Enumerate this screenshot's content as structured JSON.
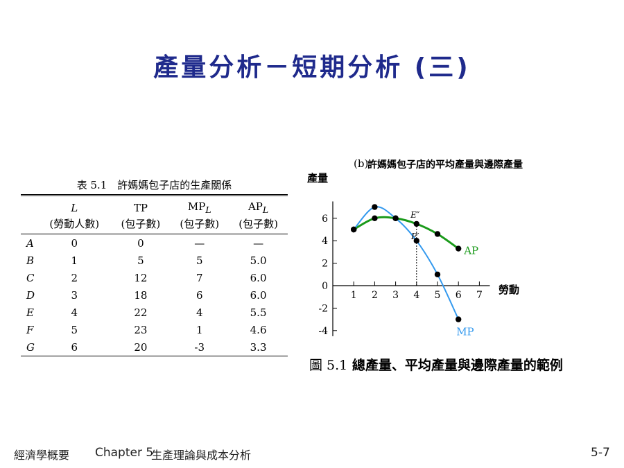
{
  "slide": {
    "title": "產量分析－短期分析 (三)",
    "footer_left": "經濟學概要",
    "footer_chapter": "Chapter 5",
    "footer_topic": "生產理論與成本分析",
    "page_number": "5-7"
  },
  "table": {
    "caption": "表 5.1　許媽媽包子店的生產關係",
    "headers": [
      {
        "main": "L",
        "sub": "(勞動人數)"
      },
      {
        "main": "TP",
        "sub": "(包子數)"
      },
      {
        "main": "MP",
        "main_sub": "L",
        "sub": "(包子數)"
      },
      {
        "main": "AP",
        "main_sub": "L",
        "sub": "(包子數)"
      }
    ],
    "rows": [
      {
        "label": "A",
        "L": "0",
        "TP": "0",
        "MP": "—",
        "AP": "—"
      },
      {
        "label": "B",
        "L": "1",
        "TP": "5",
        "MP": "5",
        "AP": "5.0"
      },
      {
        "label": "C",
        "L": "2",
        "TP": "12",
        "MP": "7",
        "AP": "6.0"
      },
      {
        "label": "D",
        "L": "3",
        "TP": "18",
        "MP": "6",
        "AP": "6.0"
      },
      {
        "label": "E",
        "L": "4",
        "TP": "22",
        "MP": "4",
        "AP": "5.5"
      },
      {
        "label": "F",
        "L": "5",
        "TP": "23",
        "MP": "1",
        "AP": "4.6"
      },
      {
        "label": "G",
        "L": "6",
        "TP": "20",
        "MP": "-3",
        "AP": "3.3"
      }
    ]
  },
  "chart_data": {
    "type": "line",
    "title_prefix": "(b)",
    "title": "許媽媽包子店的平均產量與邊際產量",
    "ylabel": "產量",
    "xlabel": "勞動",
    "xlim": [
      0,
      7.5
    ],
    "ylim": [
      -4.5,
      7.5
    ],
    "x_ticks": [
      1,
      2,
      3,
      4,
      5,
      6,
      7
    ],
    "y_ticks": [
      -4,
      -2,
      0,
      2,
      4,
      6
    ],
    "series": [
      {
        "name": "AP",
        "color": "#1a9a1a",
        "points": [
          [
            1,
            5.0
          ],
          [
            2,
            6.0
          ],
          [
            3,
            6.0
          ],
          [
            4,
            5.5
          ],
          [
            5,
            4.6
          ],
          [
            6,
            3.3
          ]
        ]
      },
      {
        "name": "MP",
        "color": "#3399ee",
        "points": [
          [
            1,
            5
          ],
          [
            2,
            7
          ],
          [
            3,
            6
          ],
          [
            4,
            4
          ],
          [
            5,
            1
          ],
          [
            6,
            -3
          ]
        ]
      }
    ],
    "annotations": [
      {
        "text": "E″",
        "x": 4,
        "y": 5.5
      },
      {
        "text": "E′",
        "x": 4,
        "y": 4
      }
    ],
    "figure_caption_num": "圖 5.1",
    "figure_caption": "總產量、平均產量與邊際產量的範例"
  }
}
